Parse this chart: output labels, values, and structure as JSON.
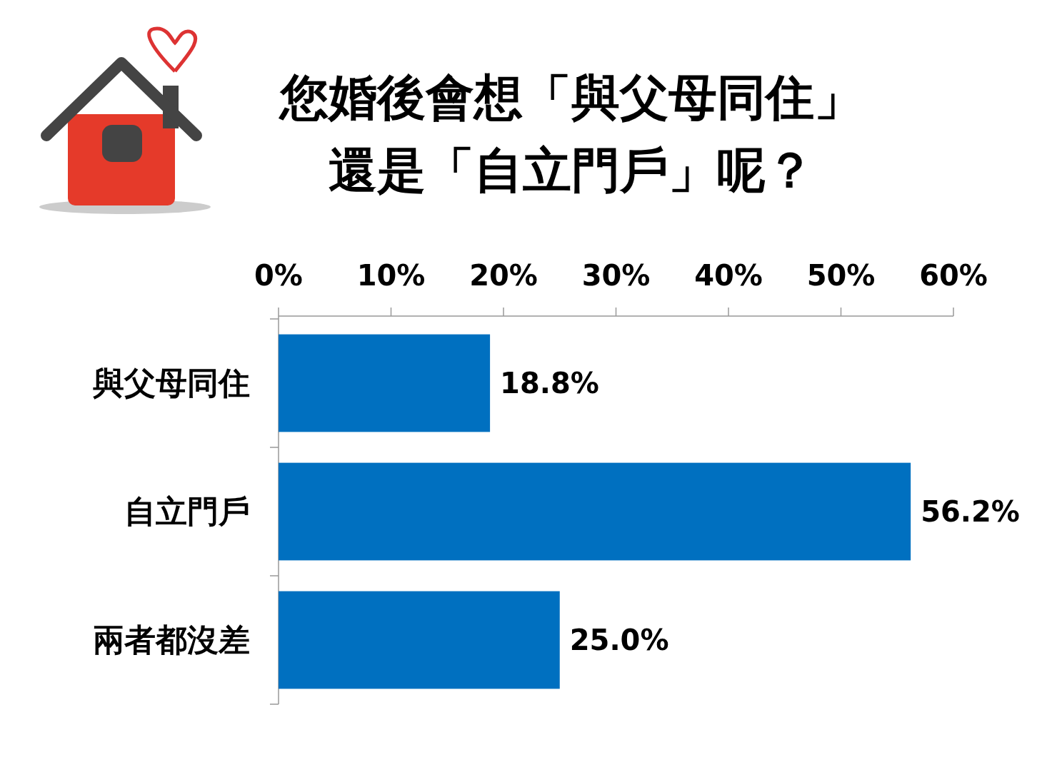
{
  "chart_data": {
    "type": "bar",
    "orientation": "horizontal",
    "title": "您婚後會想「與父母同住」",
    "subtitle": "還是「自立門戶」呢？",
    "categories": [
      "與父母同住",
      "自立門戶",
      "兩者都沒差"
    ],
    "values": [
      18.8,
      56.2,
      25.0
    ],
    "value_labels": [
      "18.8%",
      "56.2%",
      "25.0%"
    ],
    "color": "#0070c0",
    "xlim": [
      0,
      60
    ],
    "xticks": [
      {
        "value": 0,
        "label": "0%"
      },
      {
        "value": 10,
        "label": "10%"
      },
      {
        "value": 20,
        "label": "20%"
      },
      {
        "value": 30,
        "label": "30%"
      },
      {
        "value": 40,
        "label": "40%"
      },
      {
        "value": 50,
        "label": "50%"
      },
      {
        "value": 60,
        "label": "60%"
      }
    ],
    "grid": false
  }
}
